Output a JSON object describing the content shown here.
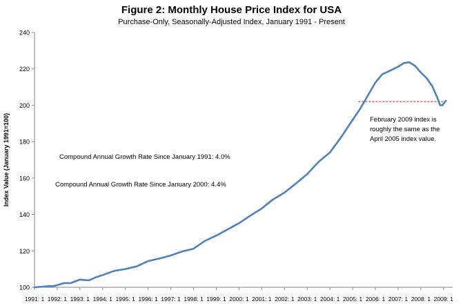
{
  "chart_data": {
    "type": "line",
    "title": "Figure 2: Monthly House Price Index for USA",
    "subtitle": "Purchase-Only, Seasonally-Adjusted Index, January 1991 - Present",
    "xlabel": "",
    "ylabel": "Index Value (January 1991=100)",
    "ylim": [
      100,
      240
    ],
    "xlim": [
      1991.0,
      2009.4
    ],
    "y_ticks": [
      100,
      120,
      140,
      160,
      180,
      200,
      220,
      240
    ],
    "x_tick_labels": [
      "1991: 1",
      "1992: 1",
      "1993: 1",
      "1994: 1",
      "1995: 1",
      "1996: 1",
      "1997: 1",
      "1998: 1",
      "1999: 1",
      "2000: 1",
      "2001: 1",
      "2002: 1",
      "2003: 1",
      "2004: 1",
      "2005: 1",
      "2006: 1",
      "2007: 1",
      "2008: 1",
      "2009: 1"
    ],
    "grid": false,
    "line_color": "#4f81bd",
    "reference_line": {
      "value": 202,
      "from_x": 2005.25,
      "to_x": 2009.1,
      "color": "#ff0000",
      "style": "dashed"
    },
    "annotations": [
      {
        "text": "February 2009 index is",
        "line": 0
      },
      {
        "text": "roughly the same as the",
        "line": 1
      },
      {
        "text": "April 2005  index value.",
        "line": 2
      }
    ],
    "cagr_notes": [
      "Compound Annual Growth Rate Since January 1991:  4.0%",
      "Compound Annual Growth Rate Since January 2000:  4.4%"
    ],
    "series": [
      {
        "x": [
          1991.0,
          1991.5,
          1991.9,
          1992.3,
          1992.6,
          1993.0,
          1993.4,
          1993.7,
          1994.0,
          1994.5,
          1995.0,
          1995.5,
          1996.0,
          1996.5,
          1997.0,
          1997.5,
          1998.0,
          1998.5,
          1999.0,
          1999.5,
          2000.0,
          2000.5,
          2001.0,
          2001.5,
          2002.0,
          2002.5,
          2003.0,
          2003.5,
          2004.0,
          2004.5,
          2005.0,
          2005.3,
          2005.6,
          2006.0,
          2006.3,
          2006.6,
          2007.0,
          2007.25,
          2007.5,
          2007.75,
          2008.0,
          2008.25,
          2008.5,
          2008.7,
          2008.85,
          2008.95,
          2009.1
        ],
        "values": [
          100.0,
          100.5,
          100.8,
          102.3,
          102.3,
          104.2,
          103.8,
          105.5,
          106.7,
          109.0,
          110.0,
          111.5,
          114.4,
          115.8,
          117.5,
          119.7,
          121.2,
          125.5,
          128.4,
          131.8,
          135.2,
          139.4,
          143.3,
          148.3,
          152.0,
          157.0,
          162.2,
          168.9,
          174.1,
          182.6,
          192.0,
          197.5,
          203.8,
          212.5,
          217.0,
          218.7,
          221.2,
          223.2,
          223.6,
          221.6,
          218.0,
          215.0,
          210.5,
          205.0,
          200.0,
          200.0,
          202.5
        ]
      }
    ]
  }
}
